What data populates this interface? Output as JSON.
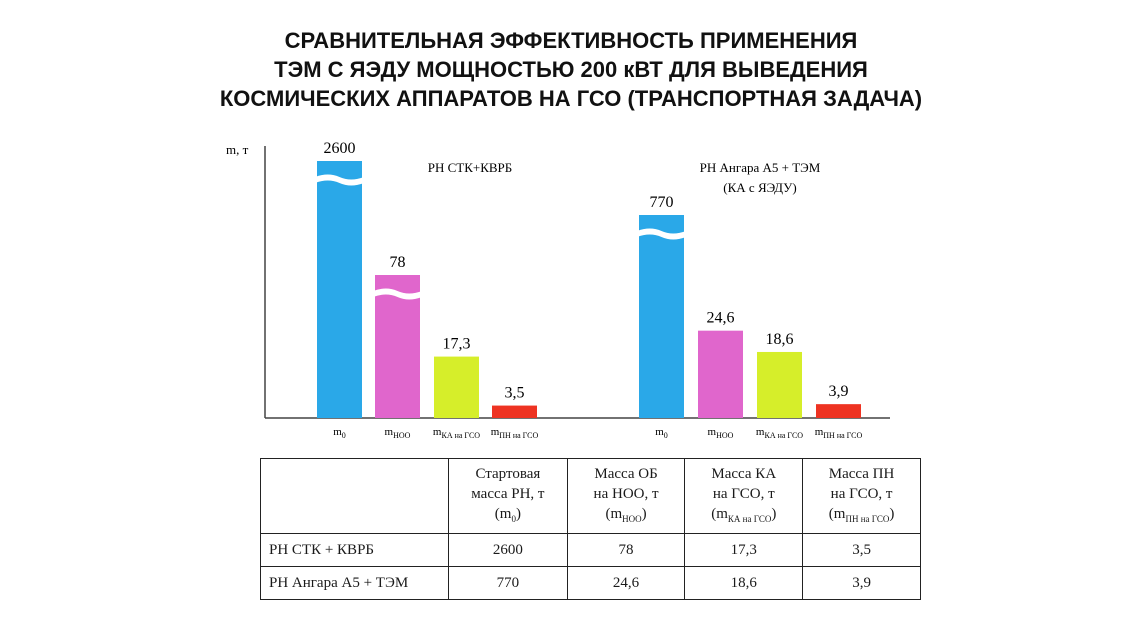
{
  "title": {
    "line1": "СРАВНИТЕЛЬНАЯ ЭФФЕКТИВНОСТЬ ПРИМЕНЕНИЯ",
    "line2": "ТЭМ С ЯЭДУ МОЩНОСТЬЮ 200 кВТ ДЛЯ ВЫВЕДЕНИЯ",
    "line3": "КОСМИЧЕСКИХ АППАРАТОВ НА ГСО (ТРАНСПОРТНАЯ ЗАДАЧА)"
  },
  "colors": {
    "m0": "#2aa8e8",
    "mnoo": "#e066cc",
    "mka": "#d6ee2a",
    "mpn": "#ee3322"
  },
  "chart_data": {
    "type": "bar",
    "ylabel": "m, т",
    "axis_breaks": true,
    "category_labels": [
      {
        "main": "m",
        "sub": "0"
      },
      {
        "main": "m",
        "sub": "НОО"
      },
      {
        "main": "m",
        "sub": "КА на ГСО"
      },
      {
        "main": "m",
        "sub": "ПН на ГСО"
      }
    ],
    "groups": [
      {
        "label_line1": "РН СТК+КВРБ",
        "label_line2": "",
        "values": [
          2600,
          78,
          17.3,
          3.5
        ],
        "value_labels": [
          "2600",
          "78",
          "17,3",
          "3,5"
        ]
      },
      {
        "label_line1": "РН Ангара А5 + ТЭМ",
        "label_line2": "(КА с ЯЭДУ)",
        "values": [
          770,
          24.6,
          18.6,
          3.9
        ],
        "value_labels": [
          "770",
          "24,6",
          "18,6",
          "3,9"
        ]
      }
    ]
  },
  "table": {
    "headers": [
      {
        "l1": "Стартовая",
        "l2": "масса РН, т",
        "l3": "m",
        "l3sub": "0"
      },
      {
        "l1": "Масса ОБ",
        "l2": "на НОО, т",
        "l3": "m",
        "l3sub": "НОО"
      },
      {
        "l1": "Масса КА",
        "l2": "на ГСО, т",
        "l3": "m",
        "l3sub": "КА на ГСО"
      },
      {
        "l1": "Масса ПН",
        "l2": "на ГСО, т",
        "l3": "m",
        "l3sub": "ПН на ГСО"
      }
    ],
    "rows": [
      {
        "label": "РН СТК + КВРБ",
        "cells": [
          "2600",
          "78",
          "17,3",
          "3,5"
        ]
      },
      {
        "label": "РН Ангара А5 + ТЭМ",
        "cells": [
          "770",
          "24,6",
          "18,6",
          "3,9"
        ]
      }
    ]
  }
}
